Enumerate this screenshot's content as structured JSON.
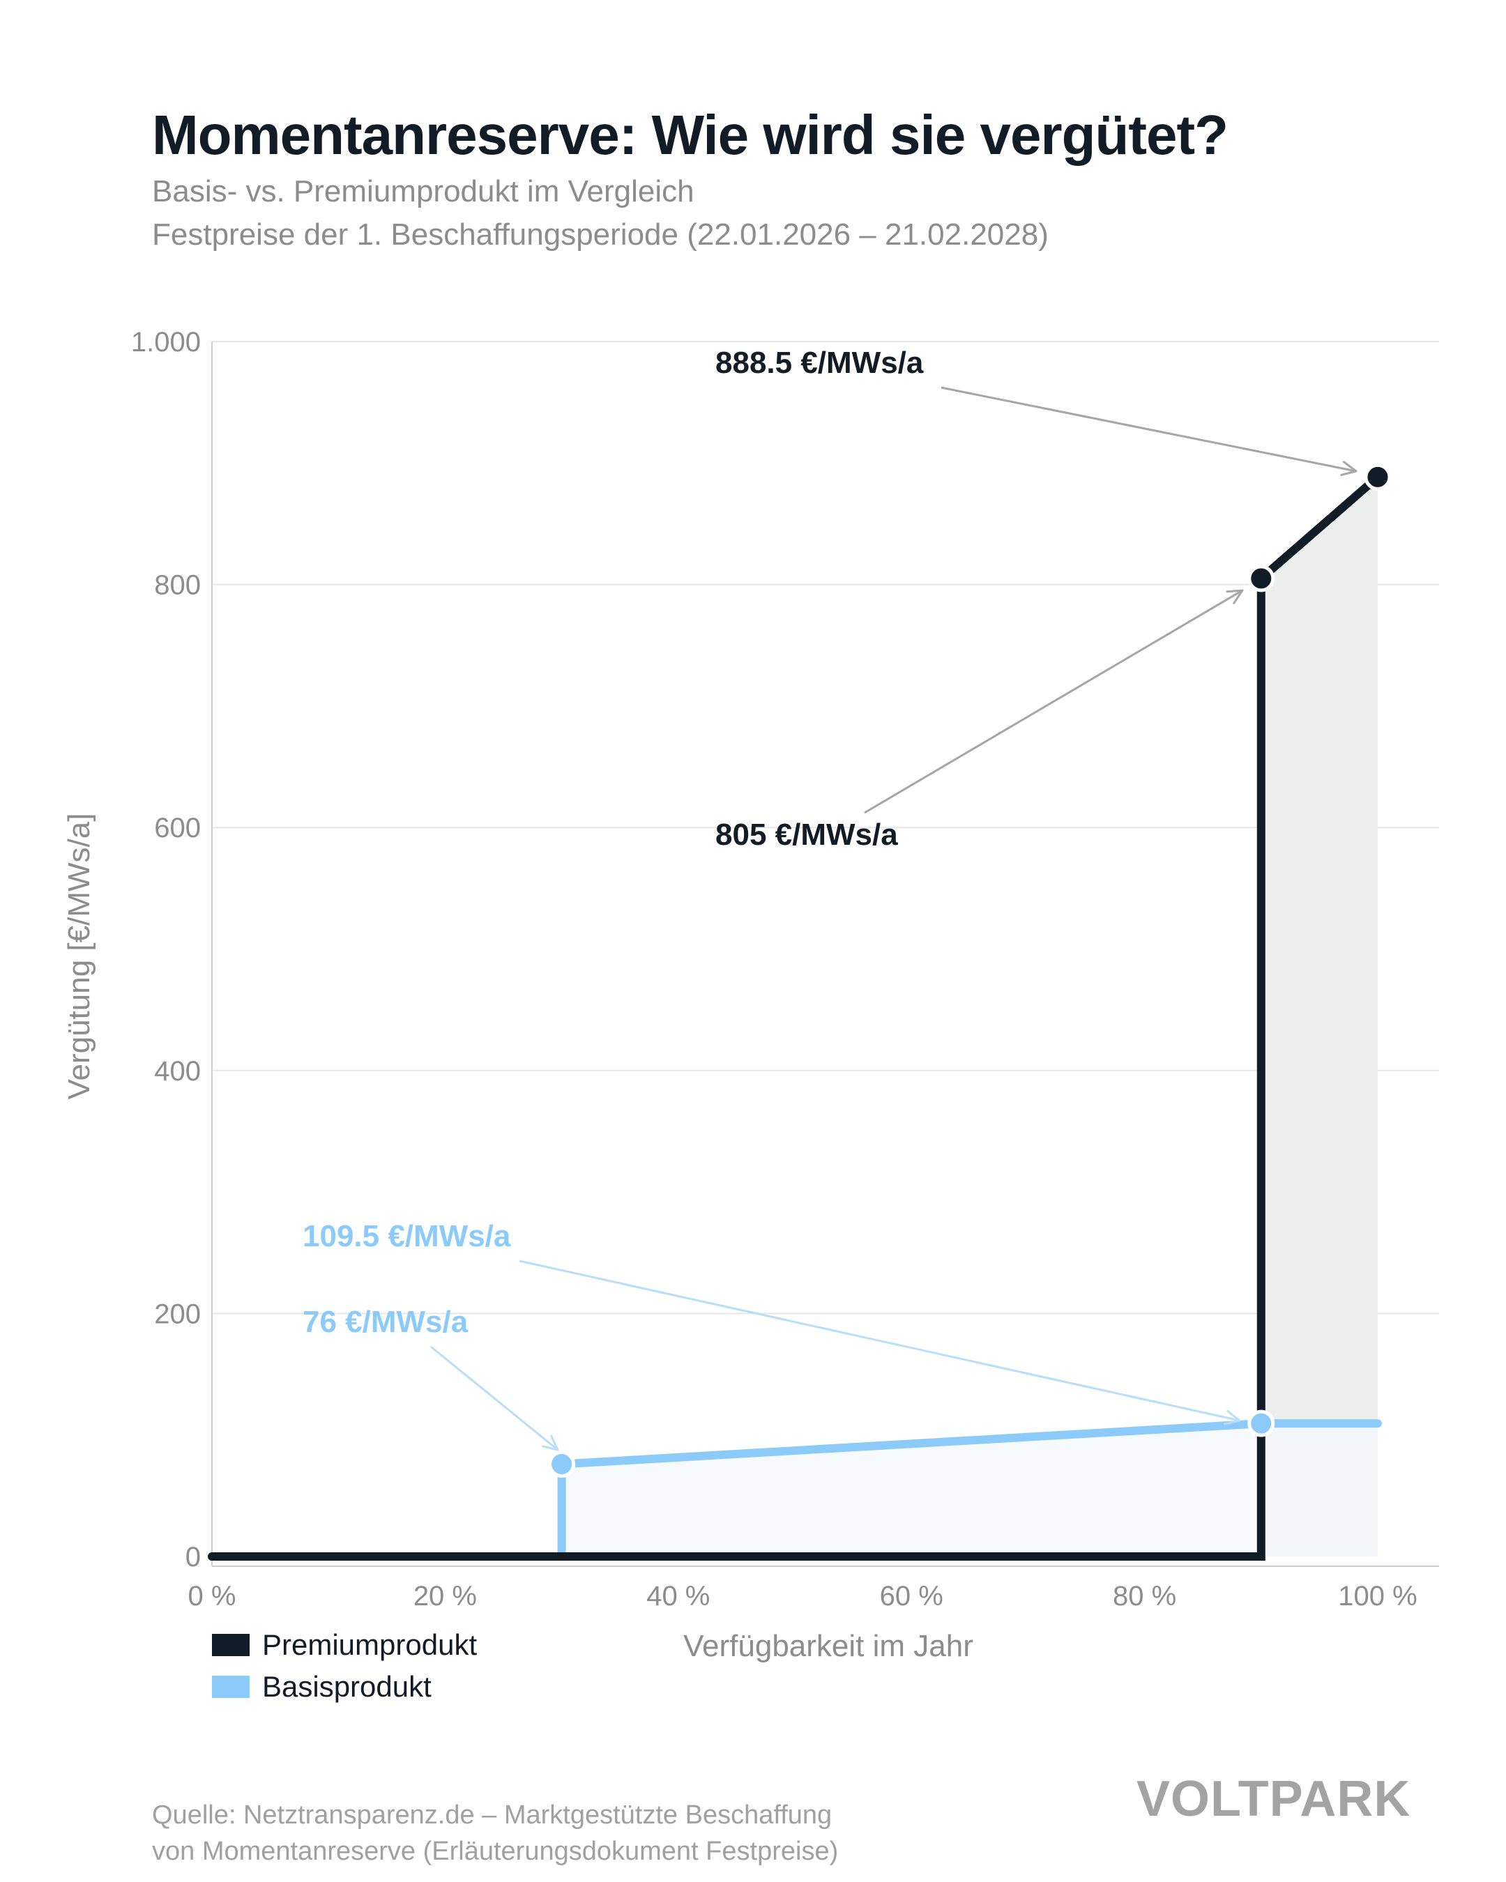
{
  "header": {
    "title": "Momentanreserve: Wie wird sie vergütet?",
    "subtitle_1": "Basis- vs. Premiumprodukt im Vergleich",
    "subtitle_2": "Festpreise der 1. Beschaffungsperiode (22.01.2026 – 21.02.2028)"
  },
  "chart_data": {
    "type": "line",
    "xlabel": "Verfügbarkeit im Jahr",
    "ylabel": "Vergütung [€/MWs/a]",
    "xlim": [
      0,
      100
    ],
    "ylim": [
      0,
      1000
    ],
    "x_ticks": [
      0,
      20,
      40,
      60,
      80,
      100
    ],
    "x_tick_labels": [
      "0 %",
      "20 %",
      "40 %",
      "60 %",
      "80 %",
      "100 %"
    ],
    "y_ticks": [
      0,
      200,
      400,
      600,
      800,
      1000
    ],
    "y_tick_labels": [
      "0",
      "200",
      "400",
      "600",
      "800",
      "1.000"
    ],
    "grid": true,
    "legend_position": "bottom-left",
    "series": [
      {
        "name": "Premiumprodukt",
        "color": "#111c26",
        "area_color": "#edefee",
        "points": [
          [
            0,
            0
          ],
          [
            90,
            0
          ],
          [
            90,
            805
          ],
          [
            100,
            888.5
          ]
        ],
        "markers": [
          [
            90,
            805
          ],
          [
            100,
            888.5
          ]
        ]
      },
      {
        "name": "Basisprodukt",
        "color": "#8ccbf9",
        "area_color": "#f3f8fc",
        "points": [
          [
            0,
            0
          ],
          [
            30,
            0
          ],
          [
            30,
            76
          ],
          [
            90,
            109.5
          ],
          [
            100,
            109.5
          ]
        ],
        "markers": [
          [
            30,
            76
          ],
          [
            90,
            109.5
          ]
        ]
      }
    ],
    "annotations": [
      {
        "text": "888.5 €/MWs/a",
        "point": [
          100,
          888.5
        ],
        "color": "#111c26",
        "arrow_color": "#a6a6a6"
      },
      {
        "text": "805 €/MWs/a",
        "point": [
          90,
          805
        ],
        "color": "#111c26",
        "arrow_color": "#a6a6a6"
      },
      {
        "text": "109.5 €/MWs/a",
        "point": [
          90,
          109.5
        ],
        "color": "#8ccbf9",
        "arrow_color": "#b8def9"
      },
      {
        "text": "76 €/MWs/a",
        "point": [
          30,
          76
        ],
        "color": "#8ccbf9",
        "arrow_color": "#b8def9"
      }
    ]
  },
  "footer": {
    "source_line_1": "Quelle: Netztransparenz.de – Marktgestützte Beschaffung",
    "source_line_2": "von Momentanreserve (Erläuterungsdokument Festpreise)",
    "logo": "VOLTPARK"
  }
}
